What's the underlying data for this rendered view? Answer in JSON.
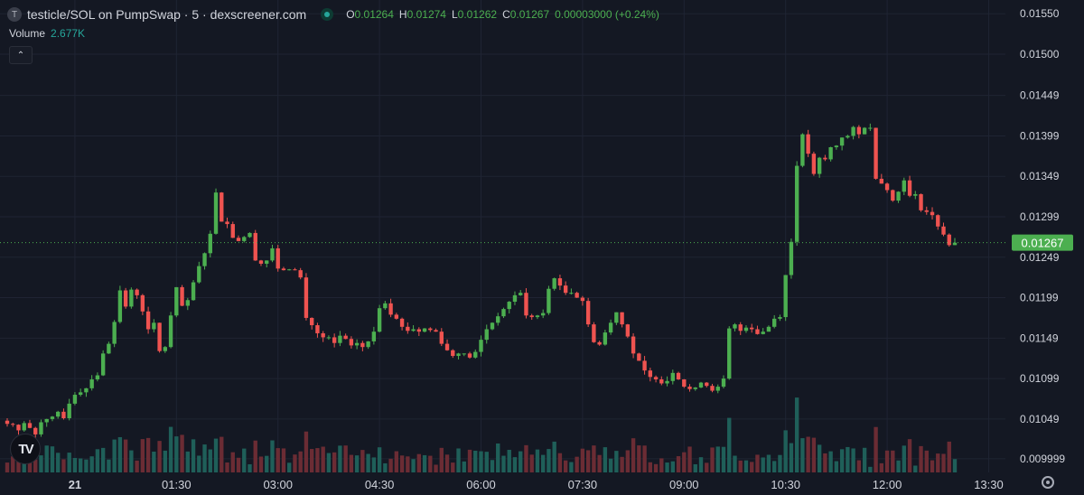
{
  "header": {
    "symbol_icon": "T",
    "title": "testicle/SOL on PumpSwap · 5 · dexscreener.com",
    "ohlc": [
      {
        "key": "O",
        "value": "0.01264"
      },
      {
        "key": "H",
        "value": "0.01274"
      },
      {
        "key": "L",
        "value": "0.01262"
      },
      {
        "key": "C",
        "value": "0.01267"
      }
    ],
    "change": "0.00003000 (+0.24%)"
  },
  "volume": {
    "label": "Volume",
    "value": "2.677K"
  },
  "logo_text": "TV",
  "icons": {
    "collapse": "chevron-up-icon",
    "logo": "tradingview-logo-icon",
    "settings": "gear-icon"
  },
  "colors": {
    "up": "#26a69a",
    "up_candle": "#4caf50",
    "down": "#ef5350",
    "background": "#141823",
    "grid": "#1f2433",
    "last_price": "#4caf50"
  },
  "chart_data": {
    "type": "candlestick",
    "interval": "5m",
    "x_ticks": [
      "21",
      "01:30",
      "03:00",
      "04:30",
      "06:00",
      "07:30",
      "09:00",
      "10:30",
      "12:00",
      "13:30"
    ],
    "y_ticks": [
      "0.01550",
      "0.01500",
      "0.01449",
      "0.01399",
      "0.01349",
      "0.01299",
      "0.01249",
      "0.01199",
      "0.01149",
      "0.01099",
      "0.01049",
      "0.009999"
    ],
    "ylim": [
      0.00983,
      0.01567
    ],
    "last_price": 0.01267,
    "last_price_label": "0.01267",
    "close": [
      0.01043,
      0.01042,
      0.01035,
      0.01044,
      0.01038,
      0.0103,
      0.01045,
      0.01049,
      0.01052,
      0.01058,
      0.0105,
      0.01068,
      0.01079,
      0.01082,
      0.01087,
      0.01098,
      0.01103,
      0.0113,
      0.01142,
      0.01169,
      0.01208,
      0.01188,
      0.01209,
      0.01202,
      0.01182,
      0.0116,
      0.01168,
      0.01133,
      0.01138,
      0.01177,
      0.01212,
      0.01189,
      0.01196,
      0.01218,
      0.01238,
      0.01254,
      0.01278,
      0.01329,
      0.01293,
      0.0129,
      0.01273,
      0.01269,
      0.01274,
      0.01279,
      0.01245,
      0.01241,
      0.01245,
      0.0126,
      0.01235,
      0.01233,
      0.01234,
      0.01233,
      0.01224,
      0.01174,
      0.01165,
      0.01155,
      0.0115,
      0.0115,
      0.01143,
      0.01152,
      0.01148,
      0.0114,
      0.01143,
      0.01138,
      0.01145,
      0.01157,
      0.01186,
      0.01192,
      0.01178,
      0.01173,
      0.01163,
      0.01158,
      0.0116,
      0.01157,
      0.01161,
      0.01159,
      0.01157,
      0.01142,
      0.01134,
      0.01127,
      0.0113,
      0.0113,
      0.01125,
      0.01132,
      0.01147,
      0.0116,
      0.01168,
      0.01176,
      0.01185,
      0.01194,
      0.01202,
      0.01205,
      0.01177,
      0.01175,
      0.01177,
      0.0118,
      0.0121,
      0.01223,
      0.01214,
      0.01205,
      0.01205,
      0.01199,
      0.01195,
      0.01166,
      0.01144,
      0.01141,
      0.01156,
      0.01168,
      0.01181,
      0.01166,
      0.01151,
      0.0113,
      0.01121,
      0.01109,
      0.01101,
      0.01098,
      0.01093,
      0.01096,
      0.01106,
      0.01098,
      0.01089,
      0.01086,
      0.01088,
      0.01094,
      0.0109,
      0.01084,
      0.01089,
      0.01099,
      0.01161,
      0.01166,
      0.01158,
      0.01162,
      0.0116,
      0.01154,
      0.01157,
      0.01163,
      0.01173,
      0.01175,
      0.01227,
      0.01268,
      0.01362,
      0.01401,
      0.01377,
      0.01352,
      0.01372,
      0.0137,
      0.01385,
      0.01387,
      0.01397,
      0.01399,
      0.0141,
      0.01401,
      0.01409,
      0.01409,
      0.01346,
      0.0134,
      0.01332,
      0.01319,
      0.0133,
      0.01344,
      0.01325,
      0.01327,
      0.01307,
      0.01305,
      0.01301,
      0.01287,
      0.01277,
      0.01264,
      0.01267
    ]
  }
}
